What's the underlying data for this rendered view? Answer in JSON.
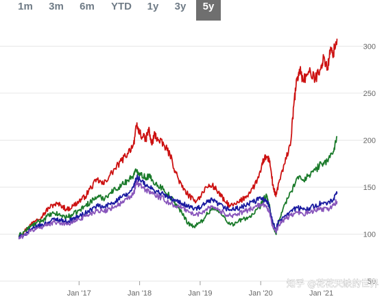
{
  "range_selector": {
    "buttons": [
      {
        "label": "1m",
        "active": false
      },
      {
        "label": "3m",
        "active": false
      },
      {
        "label": "6m",
        "active": false
      },
      {
        "label": "YTD",
        "active": false
      },
      {
        "label": "1y",
        "active": false
      },
      {
        "label": "3y",
        "active": false
      },
      {
        "label": "5y",
        "active": true
      }
    ]
  },
  "watermark": "知乎 @花花天缺的世界",
  "colors": {
    "red": "#cc1111",
    "green": "#1a7a2a",
    "navy": "#1a1aa0",
    "purple": "#8855bb",
    "grid": "#e6e6e6",
    "active_button": "#6f6f6f"
  },
  "chart_data": {
    "type": "line",
    "title": "",
    "xlabel": "",
    "ylabel": "",
    "x_range": [
      2016.0,
      2021.3
    ],
    "ylim": [
      50,
      320
    ],
    "y_ticks": [
      50,
      100,
      150,
      200,
      250,
      300
    ],
    "x_ticks": [
      {
        "label": "Jan '17",
        "value": 2017.0
      },
      {
        "label": "Jan '18",
        "value": 2018.0
      },
      {
        "label": "Jan '19",
        "value": 2019.0
      },
      {
        "label": "Jan '20",
        "value": 2020.0
      },
      {
        "label": "Jan '21",
        "value": 2021.0
      }
    ],
    "grid": "horizontal",
    "y_axis_side": "right",
    "series": [
      {
        "color": "#cc1111",
        "points": [
          [
            2016.0,
            98
          ],
          [
            2016.1,
            103
          ],
          [
            2016.2,
            110
          ],
          [
            2016.3,
            116
          ],
          [
            2016.4,
            120
          ],
          [
            2016.5,
            128
          ],
          [
            2016.6,
            132
          ],
          [
            2016.7,
            131
          ],
          [
            2016.8,
            126
          ],
          [
            2016.9,
            130
          ],
          [
            2017.0,
            135
          ],
          [
            2017.1,
            140
          ],
          [
            2017.2,
            150
          ],
          [
            2017.3,
            158
          ],
          [
            2017.4,
            153
          ],
          [
            2017.5,
            162
          ],
          [
            2017.6,
            170
          ],
          [
            2017.7,
            178
          ],
          [
            2017.8,
            186
          ],
          [
            2017.9,
            196
          ],
          [
            2017.95,
            215
          ],
          [
            2018.0,
            208
          ],
          [
            2018.1,
            200
          ],
          [
            2018.15,
            212
          ],
          [
            2018.2,
            195
          ],
          [
            2018.25,
            207
          ],
          [
            2018.3,
            200
          ],
          [
            2018.4,
            195
          ],
          [
            2018.5,
            185
          ],
          [
            2018.6,
            165
          ],
          [
            2018.7,
            150
          ],
          [
            2018.8,
            142
          ],
          [
            2018.9,
            135
          ],
          [
            2019.0,
            140
          ],
          [
            2019.1,
            150
          ],
          [
            2019.2,
            152
          ],
          [
            2019.3,
            145
          ],
          [
            2019.4,
            135
          ],
          [
            2019.5,
            130
          ],
          [
            2019.6,
            132
          ],
          [
            2019.7,
            137
          ],
          [
            2019.8,
            143
          ],
          [
            2019.9,
            152
          ],
          [
            2020.0,
            166
          ],
          [
            2020.05,
            180
          ],
          [
            2020.1,
            182
          ],
          [
            2020.15,
            178
          ],
          [
            2020.2,
            152
          ],
          [
            2020.25,
            140
          ],
          [
            2020.3,
            155
          ],
          [
            2020.4,
            175
          ],
          [
            2020.5,
            200
          ],
          [
            2020.55,
            240
          ],
          [
            2020.6,
            265
          ],
          [
            2020.65,
            275
          ],
          [
            2020.7,
            264
          ],
          [
            2020.8,
            272
          ],
          [
            2020.9,
            265
          ],
          [
            2021.0,
            280
          ],
          [
            2021.05,
            288
          ],
          [
            2021.1,
            275
          ],
          [
            2021.15,
            295
          ],
          [
            2021.2,
            293
          ],
          [
            2021.26,
            308
          ]
        ]
      },
      {
        "color": "#1a7a2a",
        "points": [
          [
            2016.0,
            98
          ],
          [
            2016.1,
            103
          ],
          [
            2016.2,
            108
          ],
          [
            2016.3,
            112
          ],
          [
            2016.4,
            115
          ],
          [
            2016.5,
            120
          ],
          [
            2016.6,
            122
          ],
          [
            2016.7,
            120
          ],
          [
            2016.8,
            118
          ],
          [
            2016.9,
            121
          ],
          [
            2017.0,
            125
          ],
          [
            2017.1,
            130
          ],
          [
            2017.2,
            135
          ],
          [
            2017.3,
            140
          ],
          [
            2017.4,
            138
          ],
          [
            2017.5,
            143
          ],
          [
            2017.6,
            148
          ],
          [
            2017.7,
            152
          ],
          [
            2017.8,
            157
          ],
          [
            2017.9,
            163
          ],
          [
            2017.95,
            168
          ],
          [
            2018.0,
            165
          ],
          [
            2018.1,
            160
          ],
          [
            2018.15,
            162
          ],
          [
            2018.2,
            158
          ],
          [
            2018.3,
            152
          ],
          [
            2018.4,
            148
          ],
          [
            2018.5,
            140
          ],
          [
            2018.6,
            132
          ],
          [
            2018.7,
            122
          ],
          [
            2018.8,
            112
          ],
          [
            2018.9,
            108
          ],
          [
            2019.0,
            112
          ],
          [
            2019.1,
            120
          ],
          [
            2019.2,
            128
          ],
          [
            2019.3,
            124
          ],
          [
            2019.4,
            118
          ],
          [
            2019.5,
            110
          ],
          [
            2019.6,
            112
          ],
          [
            2019.7,
            116
          ],
          [
            2019.8,
            118
          ],
          [
            2019.9,
            122
          ],
          [
            2020.0,
            130
          ],
          [
            2020.05,
            138
          ],
          [
            2020.1,
            140
          ],
          [
            2020.15,
            128
          ],
          [
            2020.2,
            108
          ],
          [
            2020.25,
            100
          ],
          [
            2020.3,
            115
          ],
          [
            2020.4,
            132
          ],
          [
            2020.5,
            145
          ],
          [
            2020.6,
            160
          ],
          [
            2020.7,
            158
          ],
          [
            2020.8,
            163
          ],
          [
            2020.9,
            168
          ],
          [
            2021.0,
            175
          ],
          [
            2021.1,
            178
          ],
          [
            2021.2,
            188
          ],
          [
            2021.26,
            203
          ]
        ]
      },
      {
        "color": "#1a1aa0",
        "points": [
          [
            2016.0,
            96
          ],
          [
            2016.1,
            100
          ],
          [
            2016.2,
            104
          ],
          [
            2016.3,
            108
          ],
          [
            2016.4,
            110
          ],
          [
            2016.5,
            113
          ],
          [
            2016.6,
            116
          ],
          [
            2016.7,
            115
          ],
          [
            2016.8,
            113
          ],
          [
            2016.9,
            116
          ],
          [
            2017.0,
            119
          ],
          [
            2017.1,
            122
          ],
          [
            2017.2,
            126
          ],
          [
            2017.3,
            130
          ],
          [
            2017.4,
            128
          ],
          [
            2017.5,
            132
          ],
          [
            2017.6,
            135
          ],
          [
            2017.7,
            139
          ],
          [
            2017.8,
            142
          ],
          [
            2017.9,
            150
          ],
          [
            2017.95,
            160
          ],
          [
            2018.0,
            158
          ],
          [
            2018.1,
            152
          ],
          [
            2018.2,
            148
          ],
          [
            2018.3,
            145
          ],
          [
            2018.4,
            142
          ],
          [
            2018.5,
            138
          ],
          [
            2018.6,
            135
          ],
          [
            2018.7,
            133
          ],
          [
            2018.8,
            130
          ],
          [
            2018.9,
            127
          ],
          [
            2019.0,
            128
          ],
          [
            2019.1,
            133
          ],
          [
            2019.2,
            136
          ],
          [
            2019.3,
            132
          ],
          [
            2019.4,
            128
          ],
          [
            2019.5,
            126
          ],
          [
            2019.6,
            127
          ],
          [
            2019.7,
            129
          ],
          [
            2019.8,
            132
          ],
          [
            2019.9,
            135
          ],
          [
            2020.0,
            138
          ],
          [
            2020.1,
            136
          ],
          [
            2020.15,
            128
          ],
          [
            2020.2,
            112
          ],
          [
            2020.25,
            105
          ],
          [
            2020.3,
            114
          ],
          [
            2020.4,
            120
          ],
          [
            2020.5,
            125
          ],
          [
            2020.6,
            128
          ],
          [
            2020.7,
            126
          ],
          [
            2020.8,
            128
          ],
          [
            2020.9,
            130
          ],
          [
            2021.0,
            133
          ],
          [
            2021.1,
            132
          ],
          [
            2021.2,
            137
          ],
          [
            2021.26,
            143
          ]
        ]
      },
      {
        "color": "#8855bb",
        "points": [
          [
            2016.0,
            95
          ],
          [
            2016.1,
            99
          ],
          [
            2016.2,
            103
          ],
          [
            2016.3,
            106
          ],
          [
            2016.4,
            108
          ],
          [
            2016.5,
            111
          ],
          [
            2016.6,
            113
          ],
          [
            2016.7,
            112
          ],
          [
            2016.8,
            110
          ],
          [
            2016.9,
            113
          ],
          [
            2017.0,
            116
          ],
          [
            2017.1,
            119
          ],
          [
            2017.2,
            122
          ],
          [
            2017.3,
            126
          ],
          [
            2017.4,
            124
          ],
          [
            2017.5,
            127
          ],
          [
            2017.6,
            130
          ],
          [
            2017.7,
            133
          ],
          [
            2017.8,
            137
          ],
          [
            2017.9,
            143
          ],
          [
            2017.95,
            155
          ],
          [
            2018.0,
            152
          ],
          [
            2018.1,
            147
          ],
          [
            2018.2,
            144
          ],
          [
            2018.3,
            140
          ],
          [
            2018.4,
            137
          ],
          [
            2018.5,
            133
          ],
          [
            2018.6,
            130
          ],
          [
            2018.7,
            128
          ],
          [
            2018.8,
            125
          ],
          [
            2018.9,
            120
          ],
          [
            2019.0,
            122
          ],
          [
            2019.1,
            127
          ],
          [
            2019.2,
            130
          ],
          [
            2019.3,
            126
          ],
          [
            2019.4,
            122
          ],
          [
            2019.5,
            120
          ],
          [
            2019.6,
            121
          ],
          [
            2019.7,
            123
          ],
          [
            2019.8,
            126
          ],
          [
            2019.9,
            129
          ],
          [
            2020.0,
            131
          ],
          [
            2020.1,
            130
          ],
          [
            2020.15,
            122
          ],
          [
            2020.2,
            108
          ],
          [
            2020.25,
            102
          ],
          [
            2020.3,
            110
          ],
          [
            2020.4,
            116
          ],
          [
            2020.5,
            120
          ],
          [
            2020.6,
            123
          ],
          [
            2020.7,
            121
          ],
          [
            2020.8,
            123
          ],
          [
            2020.9,
            125
          ],
          [
            2021.0,
            127
          ],
          [
            2021.1,
            126
          ],
          [
            2021.2,
            131
          ],
          [
            2021.26,
            135
          ]
        ]
      }
    ]
  }
}
